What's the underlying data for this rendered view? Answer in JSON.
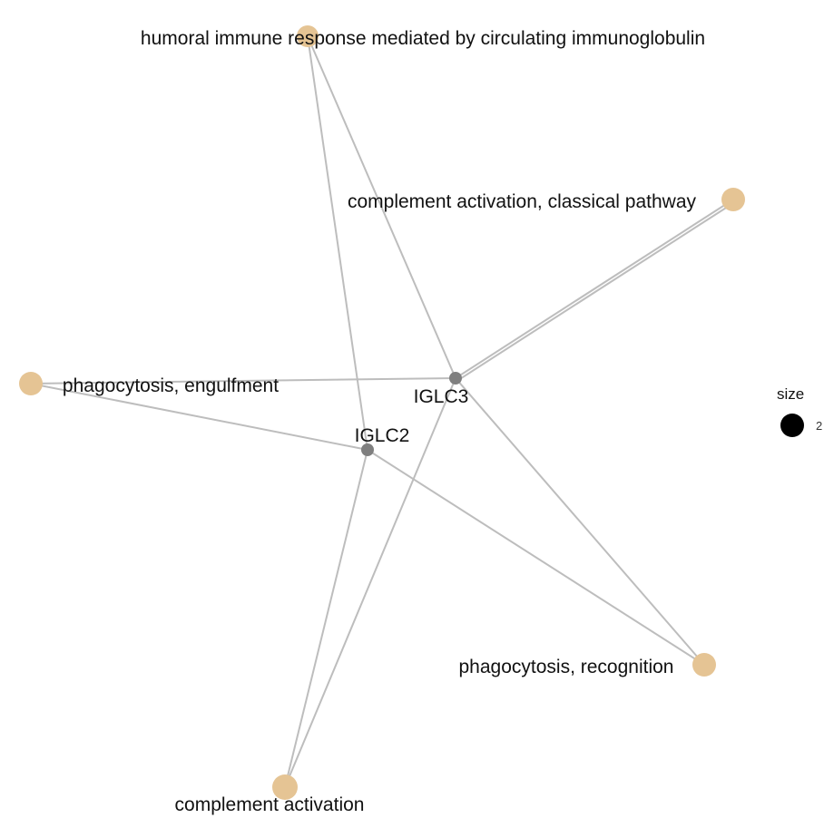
{
  "network": {
    "term_color": "#e5c494",
    "gene_color": "#7f7f7f",
    "edge_color": "#bdbdbd",
    "terms": [
      {
        "id": "humoral",
        "label": "humoral immune response mediated by circulating immunoglobulin"
      },
      {
        "id": "classical",
        "label": "complement activation, classical pathway"
      },
      {
        "id": "engulfment",
        "label": "phagocytosis, engulfment"
      },
      {
        "id": "recognition",
        "label": "phagocytosis, recognition"
      },
      {
        "id": "complement",
        "label": "complement activation"
      }
    ],
    "genes": [
      {
        "id": "IGLC3",
        "label": "IGLC3"
      },
      {
        "id": "IGLC2",
        "label": "IGLC2"
      }
    ],
    "edges": [
      [
        "humoral",
        "IGLC3"
      ],
      [
        "humoral",
        "IGLC2"
      ],
      [
        "classical",
        "IGLC3"
      ],
      [
        "classical",
        "IGLC3"
      ],
      [
        "engulfment",
        "IGLC3"
      ],
      [
        "engulfment",
        "IGLC2"
      ],
      [
        "recognition",
        "IGLC3"
      ],
      [
        "recognition",
        "IGLC2"
      ],
      [
        "complement",
        "IGLC3"
      ],
      [
        "complement",
        "IGLC2"
      ]
    ]
  },
  "legend": {
    "title": "size",
    "value": "2",
    "swatch_color": "#000000"
  }
}
